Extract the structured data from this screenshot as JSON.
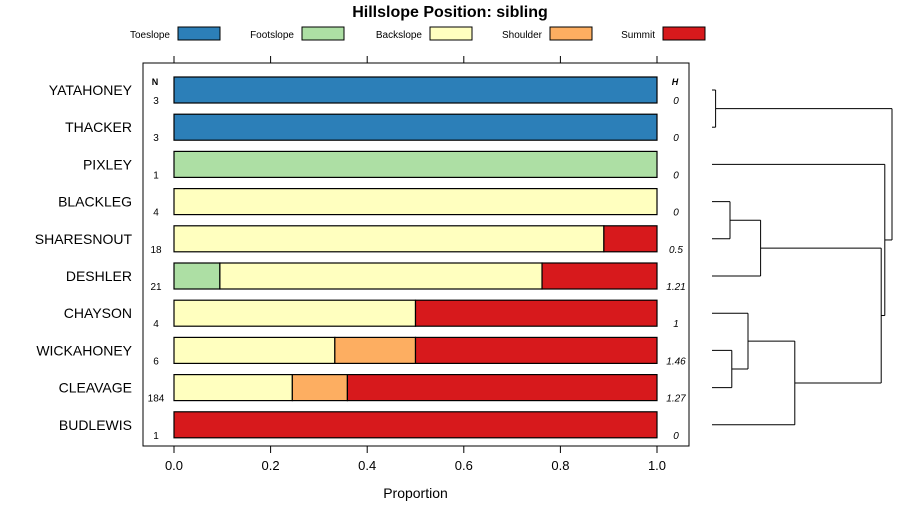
{
  "chart_data": {
    "type": "bar",
    "orientation": "horizontal",
    "stacked": true,
    "title": "Hillslope Position: sibling",
    "xlabel": "Proportion",
    "ylabel": "",
    "xlim": [
      0,
      1
    ],
    "x_ticks": [
      "0.0",
      "0.2",
      "0.4",
      "0.6",
      "0.8",
      "1.0"
    ],
    "left_header": "N",
    "right_header": "H",
    "legend_position": "top",
    "series": [
      {
        "name": "Toeslope",
        "color": "#2c7fb8"
      },
      {
        "name": "Footslope",
        "color": "#addfa4"
      },
      {
        "name": "Backslope",
        "color": "#ffffbf"
      },
      {
        "name": "Shoulder",
        "color": "#fdae61"
      },
      {
        "name": "Summit",
        "color": "#d7191c"
      }
    ],
    "rows": [
      {
        "label": "YATAHONEY",
        "n": "3",
        "h": "0",
        "values": [
          1,
          0,
          0,
          0,
          0
        ]
      },
      {
        "label": "THACKER",
        "n": "3",
        "h": "0",
        "values": [
          1,
          0,
          0,
          0,
          0
        ]
      },
      {
        "label": "PIXLEY",
        "n": "1",
        "h": "0",
        "values": [
          0,
          1,
          0,
          0,
          0
        ]
      },
      {
        "label": "BLACKLEG",
        "n": "4",
        "h": "0",
        "values": [
          0,
          0,
          1,
          0,
          0
        ]
      },
      {
        "label": "SHARESNOUT",
        "n": "18",
        "h": "0.5",
        "values": [
          0,
          0,
          0.89,
          0,
          0.11
        ]
      },
      {
        "label": "DESHLER",
        "n": "21",
        "h": "1.21",
        "values": [
          0,
          0.095,
          0.667,
          0,
          0.238
        ]
      },
      {
        "label": "CHAYSON",
        "n": "4",
        "h": "1",
        "values": [
          0,
          0,
          0.5,
          0,
          0.5
        ]
      },
      {
        "label": "WICKAHONEY",
        "n": "6",
        "h": "1.46",
        "values": [
          0,
          0,
          0.333,
          0.167,
          0.5
        ]
      },
      {
        "label": "CLEAVAGE",
        "n": "184",
        "h": "1.27",
        "values": [
          0,
          0,
          0.245,
          0.114,
          0.641
        ]
      },
      {
        "label": "BUDLEWIS",
        "n": "1",
        "h": "0",
        "values": [
          0,
          0,
          0,
          0,
          1
        ]
      }
    ],
    "dendrogram": {
      "type": "dendrogram",
      "leaves": [
        "YATAHONEY",
        "THACKER",
        "PIXLEY",
        "BLACKLEG",
        "SHARESNOUT",
        "DESHLER",
        "CHAYSON",
        "WICKAHONEY",
        "CLEAVAGE",
        "BUDLEWIS"
      ],
      "merges": [
        {
          "a": "YATAHONEY",
          "b": "THACKER",
          "height": 0.02
        },
        {
          "a": "BLACKLEG",
          "b": "SHARESNOUT",
          "height": 0.1
        },
        {
          "a": "WICKAHONEY",
          "b": "CLEAVAGE",
          "height": 0.11
        },
        {
          "a": "CHAYSON",
          "b": "WICKAHONEY+CLEAVAGE",
          "height": 0.2
        },
        {
          "a": "BLACKLEG+SHARESNOUT",
          "b": "DESHLER",
          "height": 0.27
        },
        {
          "a": "CHAYSON+WICKAHONEY+CLEAVAGE",
          "b": "BUDLEWIS",
          "height": 0.46
        },
        {
          "a": "BLACKLEG+SHARESNOUT+DESHLER",
          "b": "CHAYSON+WICKAHONEY+CLEAVAGE+BUDLEWIS",
          "height": 0.94
        },
        {
          "a": "PIXLEY",
          "b": "BLACKLEG+SHARESNOUT+DESHLER+CHAYSON+WICKAHONEY+CLEAVAGE+BUDLEWIS",
          "height": 0.96
        },
        {
          "a": "YATAHONEY+THACKER",
          "b": "PIXLEY+BLACKLEG+SHARESNOUT+DESHLER+CHAYSON+WICKAHONEY+CLEAVAGE+BUDLEWIS",
          "height": 1.0
        }
      ]
    }
  }
}
